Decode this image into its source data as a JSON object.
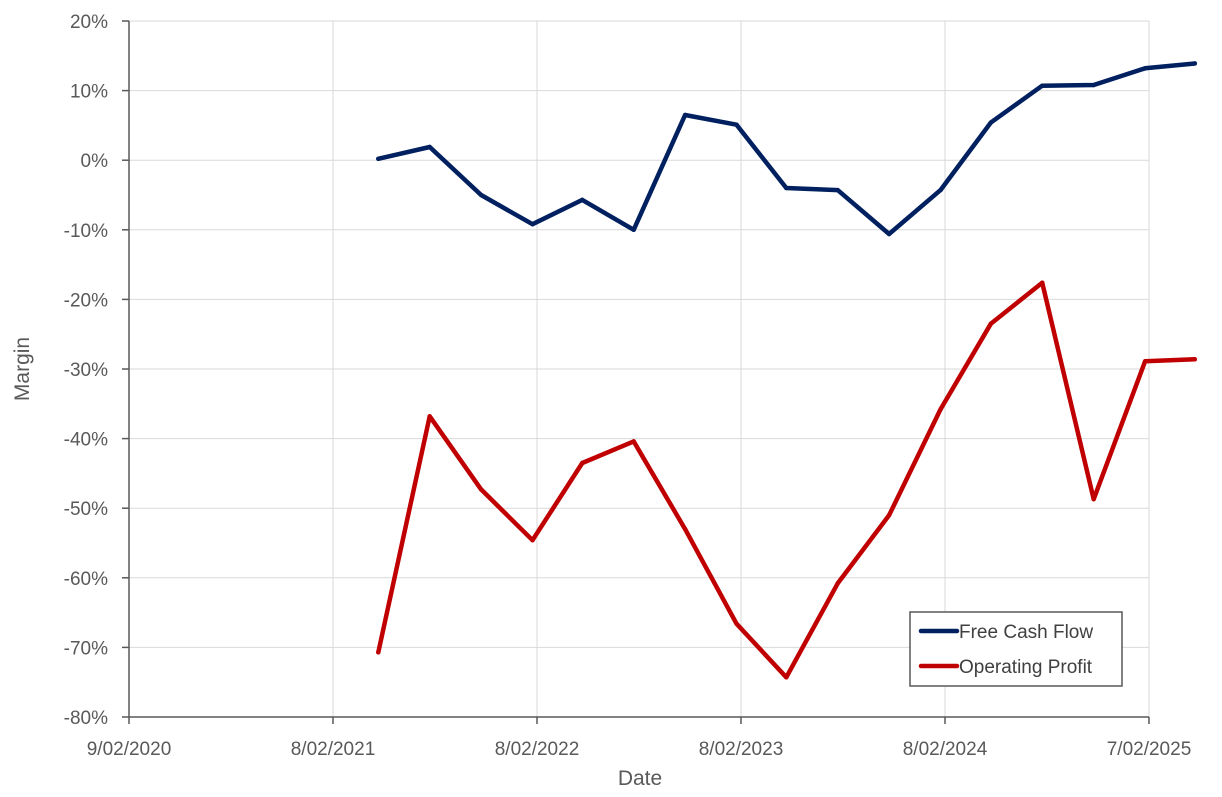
{
  "chart_data": {
    "type": "line",
    "title": "",
    "xlabel": "Date",
    "ylabel": "Margin",
    "xlim": [
      "2020-02-09",
      "2025-02-07"
    ],
    "ylim": [
      -0.8,
      0.2
    ],
    "x_ticks": [
      "9/02/2020",
      "8/02/2021",
      "8/02/2022",
      "8/02/2023",
      "8/02/2024",
      "7/02/2025"
    ],
    "y_ticks": [
      {
        "value": 0.2,
        "label": "20%"
      },
      {
        "value": 0.1,
        "label": "10%"
      },
      {
        "value": 0.0,
        "label": "0%"
      },
      {
        "value": -0.1,
        "label": "-10%"
      },
      {
        "value": -0.2,
        "label": "-20%"
      },
      {
        "value": -0.3,
        "label": "-30%"
      },
      {
        "value": -0.4,
        "label": "-40%"
      },
      {
        "value": -0.5,
        "label": "-50%"
      },
      {
        "value": -0.6,
        "label": "-60%"
      },
      {
        "value": -0.7,
        "label": "-70%"
      },
      {
        "value": -0.8,
        "label": "-80%"
      }
    ],
    "grid": true,
    "legend_position": "bottom-right",
    "x": [
      "2021-04-30",
      "2021-07-31",
      "2021-10-31",
      "2022-01-31",
      "2022-04-30",
      "2022-07-31",
      "2022-10-31",
      "2023-01-31",
      "2023-04-30",
      "2023-07-31",
      "2023-10-31",
      "2024-01-31",
      "2024-04-30",
      "2024-07-31",
      "2024-10-31",
      "2025-01-31",
      "2025-04-30"
    ],
    "series": [
      {
        "name": "Free Cash Flow",
        "color": "#002060",
        "values": [
          0.002,
          0.019,
          -0.05,
          -0.092,
          -0.057,
          -0.1,
          0.065,
          0.051,
          -0.04,
          -0.043,
          -0.106,
          -0.043,
          0.054,
          0.107,
          0.108,
          0.132,
          0.139
        ]
      },
      {
        "name": "Operating Profit",
        "color": "#C00000",
        "values": [
          -0.707,
          -0.368,
          -0.473,
          -0.546,
          -0.435,
          -0.404,
          -0.53,
          -0.666,
          -0.743,
          -0.608,
          -0.51,
          -0.358,
          -0.235,
          -0.176,
          -0.487,
          -0.289,
          -0.286
        ]
      }
    ]
  }
}
